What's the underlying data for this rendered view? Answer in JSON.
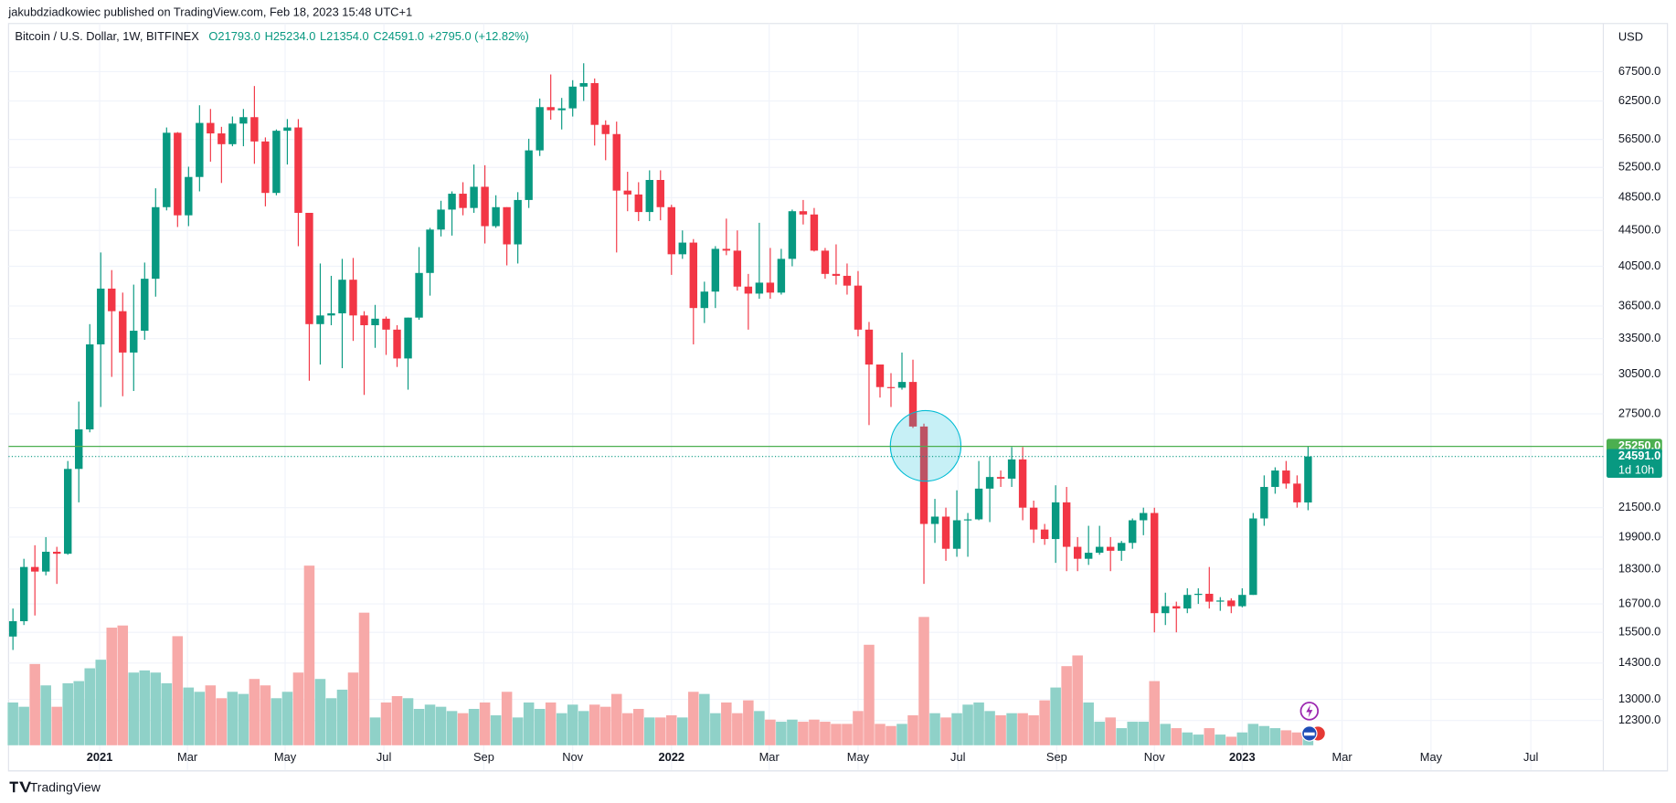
{
  "header": {
    "published": "jakubdziadkowiec published on TradingView.com, Feb 18, 2023 15:48 UTC+1",
    "footer": "TradingView"
  },
  "chart_data": {
    "type": "candlestick",
    "title": "Bitcoin / U.S. Dollar, 1W, BITFINEX",
    "legend_values": [
      "O21793.0",
      "H25234.0",
      "L21354.0",
      "C24591.0",
      "+2795.0 (+12.82%)"
    ],
    "y_axis_label": "USD",
    "log_scale": true,
    "grid": true,
    "up_color": "#089981",
    "down_color": "#f23645",
    "up_volume_color": "#8fd1c8",
    "down_volume_color": "#f7a9a8",
    "xlim": [
      -0.4,
      144.9
    ],
    "xticks": [
      {
        "value": 7.9,
        "label": "2021"
      },
      {
        "value": 15.9,
        "label": "Mar"
      },
      {
        "value": 24.8,
        "label": "May"
      },
      {
        "value": 33.8,
        "label": "Jul"
      },
      {
        "value": 42.9,
        "label": "Sep"
      },
      {
        "value": 51.0,
        "label": "Nov"
      },
      {
        "value": 60.0,
        "label": "2022"
      },
      {
        "value": 68.9,
        "label": "Mar"
      },
      {
        "value": 77.0,
        "label": "May"
      },
      {
        "value": 86.1,
        "label": "Jul"
      },
      {
        "value": 95.1,
        "label": "Sep"
      },
      {
        "value": 104.0,
        "label": "Nov"
      },
      {
        "value": 112.0,
        "label": "2023"
      },
      {
        "value": 121.1,
        "label": "Mar"
      },
      {
        "value": 129.2,
        "label": "May"
      },
      {
        "value": 138.3,
        "label": "Jul"
      }
    ],
    "ylim": [
      10805,
      78103
    ],
    "yticks": [
      {
        "value": 12300,
        "label": "12300.0"
      },
      {
        "value": 13000,
        "label": "13000.0"
      },
      {
        "value": 14300,
        "label": "14300.0"
      },
      {
        "value": 15500,
        "label": "15500.0"
      },
      {
        "value": 16700,
        "label": "16700.0"
      },
      {
        "value": 18300,
        "label": "18300.0"
      },
      {
        "value": 19900,
        "label": "19900.0"
      },
      {
        "value": 21500,
        "label": "21500.0"
      },
      {
        "value": 27500,
        "label": "27500.0"
      },
      {
        "value": 30500,
        "label": "30500.0"
      },
      {
        "value": 33500,
        "label": "33500.0"
      },
      {
        "value": 36500,
        "label": "36500.0"
      },
      {
        "value": 40500,
        "label": "40500.0"
      },
      {
        "value": 44500,
        "label": "44500.0"
      },
      {
        "value": 48500,
        "label": "48500.0"
      },
      {
        "value": 52500,
        "label": "52500.0"
      },
      {
        "value": 56500,
        "label": "56500.0"
      },
      {
        "value": 62500,
        "label": "62500.0"
      },
      {
        "value": 67500,
        "label": "67500.0"
      }
    ],
    "vlim": [
      0,
      100
    ],
    "horizontal_line": {
      "value": 25250,
      "label": "25250.0",
      "color": "#4caf50"
    },
    "price_line": {
      "value": 24591,
      "label": "24591.0",
      "countdown": "1d 10h",
      "color": "#089981"
    },
    "open": [
      15330,
      15960,
      18400,
      18180,
      19150,
      19050,
      23800,
      26400,
      33000,
      38200,
      36000,
      32300,
      34200,
      39200,
      47300,
      57500,
      46300,
      51200,
      59000,
      57400,
      55800,
      58900,
      59900,
      56200,
      49100,
      57800,
      58300,
      46600,
      34800,
      35600,
      35800,
      39100,
      35600,
      34700,
      35300,
      34300,
      31800,
      35400,
      39800,
      44600,
      47000,
      49000,
      47200,
      49900,
      45000,
      47300,
      42900,
      48200,
      54900,
      61500,
      61000,
      61300,
      64900,
      65500,
      58700,
      57300,
      49400,
      48900,
      46700,
      50800,
      47300,
      41800,
      43100,
      36300,
      37900,
      42400,
      42200,
      38400,
      37700,
      38800,
      37800,
      41300,
      46800,
      46400,
      42200,
      39700,
      39500,
      38500,
      34300,
      31300,
      29500,
      29450,
      29900,
      26600,
      20600,
      21000,
      19300,
      20800,
      20850,
      22600,
      23300,
      23200,
      24400,
      21500,
      20300,
      19800,
      21800,
      19400,
      18800,
      19100,
      19400,
      19200,
      19600,
      20800,
      21200,
      16300,
      16600,
      16500,
      17100,
      17150,
      16800,
      16850,
      16600,
      17100,
      20900,
      22700,
      23700,
      22900,
      21793
    ],
    "high": [
      16500,
      18800,
      19480,
      19900,
      19400,
      24300,
      28400,
      34800,
      42000,
      40100,
      37800,
      38600,
      40900,
      49700,
      58300,
      57600,
      52600,
      61800,
      61200,
      58400,
      60000,
      61200,
      65000,
      56800,
      58000,
      59600,
      59600,
      46600,
      40800,
      39500,
      41300,
      41400,
      36000,
      36600,
      35500,
      34700,
      35400,
      42600,
      44800,
      48100,
      49300,
      50500,
      52900,
      52800,
      48800,
      47300,
      49200,
      56600,
      62900,
      67000,
      63000,
      66000,
      69000,
      66300,
      59400,
      59200,
      51900,
      50500,
      52100,
      52100,
      47600,
      44500,
      43500,
      38900,
      42700,
      45900,
      44500,
      39700,
      45400,
      42500,
      42400,
      47000,
      48200,
      47200,
      42500,
      42900,
      40800,
      40000,
      35000,
      31300,
      30600,
      32300,
      31700,
      26800,
      22000,
      21500,
      22500,
      21200,
      24300,
      24600,
      23700,
      25200,
      25200,
      21900,
      20600,
      22800,
      22700,
      19900,
      20500,
      20500,
      19900,
      19700,
      20900,
      21500,
      21500,
      17200,
      16800,
      17400,
      17400,
      18400,
      17000,
      16950,
      17400,
      21200,
      23400,
      23900,
      24300,
      23400,
      25234
    ],
    "low": [
      14800,
      15800,
      16200,
      18000,
      17600,
      19000,
      21800,
      26200,
      28000,
      30300,
      28800,
      29200,
      33400,
      37400,
      46900,
      44900,
      45000,
      49300,
      53300,
      50400,
      55500,
      55500,
      53000,
      47400,
      48800,
      52900,
      42700,
      30000,
      31300,
      34700,
      31000,
      33300,
      28900,
      32700,
      32100,
      31100,
      29300,
      35200,
      37500,
      43800,
      43900,
      46300,
      46600,
      43000,
      44800,
      40600,
      40800,
      47200,
      54100,
      59500,
      58000,
      60000,
      62500,
      55600,
      53500,
      42000,
      46800,
      45600,
      45600,
      45700,
      39600,
      41300,
      33000,
      34900,
      36300,
      41700,
      38000,
      34300,
      37200,
      37200,
      37600,
      40500,
      45200,
      42100,
      39200,
      38600,
      37600,
      33700,
      26700,
      28700,
      28000,
      29300,
      26500,
      17600,
      19600,
      18700,
      18900,
      18900,
      20800,
      20700,
      22700,
      22700,
      20800,
      19600,
      19500,
      18600,
      18200,
      18200,
      18500,
      19000,
      18200,
      18700,
      19300,
      20000,
      15500,
      15800,
      15500,
      16300,
      16700,
      16500,
      16400,
      16300,
      16550,
      17100,
      20500,
      22300,
      22600,
      21500,
      21354
    ],
    "close": [
      15960,
      18400,
      18180,
      19150,
      19050,
      23800,
      26400,
      33000,
      38200,
      36000,
      32300,
      34200,
      39200,
      47300,
      57500,
      46300,
      51200,
      59000,
      57400,
      55800,
      58900,
      59900,
      56200,
      49100,
      57800,
      58300,
      46600,
      34800,
      35600,
      35800,
      39100,
      35600,
      34700,
      35300,
      34300,
      31800,
      35400,
      39800,
      44600,
      47000,
      49000,
      47200,
      49900,
      45000,
      47300,
      42900,
      48200,
      54900,
      61500,
      61000,
      61300,
      64900,
      65500,
      58700,
      57300,
      49400,
      48900,
      46700,
      50800,
      47300,
      41800,
      43100,
      36300,
      37900,
      42400,
      42200,
      38400,
      37700,
      38800,
      37800,
      41300,
      46800,
      46400,
      42200,
      39700,
      39500,
      38500,
      34300,
      31300,
      29500,
      29450,
      29900,
      26600,
      20600,
      21000,
      19300,
      20800,
      20850,
      22600,
      23300,
      23200,
      24400,
      21500,
      20300,
      19800,
      21800,
      19400,
      18800,
      19100,
      19400,
      19200,
      19600,
      20800,
      21200,
      16300,
      16600,
      16500,
      17100,
      17150,
      16800,
      16850,
      16600,
      17100,
      20900,
      22700,
      23700,
      22900,
      21800,
      24591
    ],
    "volume": [
      20,
      18,
      38,
      28,
      18,
      29,
      30,
      36,
      40,
      55,
      56,
      34,
      35,
      34,
      29,
      51,
      27,
      25,
      28,
      22,
      25,
      24,
      31,
      28,
      22,
      25,
      34,
      84,
      31,
      22,
      26,
      34,
      62,
      13,
      20,
      23,
      22,
      17,
      19,
      18,
      16,
      15,
      17,
      20,
      14,
      25,
      13,
      20,
      17,
      20,
      15,
      19,
      16,
      19,
      18,
      24,
      15,
      17,
      13,
      13,
      14,
      13,
      25,
      24,
      15,
      20,
      15,
      21,
      16,
      12,
      11,
      12,
      11,
      12,
      11,
      10,
      10,
      16,
      47,
      10,
      9,
      10,
      14,
      60,
      15,
      13,
      15,
      19,
      20,
      16,
      14,
      15,
      15,
      14,
      21,
      27,
      37,
      42,
      20,
      11,
      13,
      8,
      11,
      11,
      30,
      10,
      8,
      6,
      5,
      8,
      5,
      4,
      6,
      10,
      9,
      8,
      7,
      6,
      5
    ]
  }
}
